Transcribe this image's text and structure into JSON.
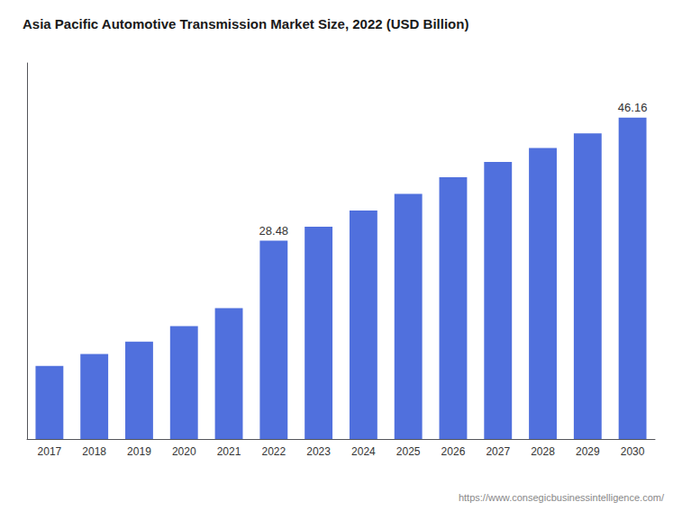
{
  "chart_data": {
    "type": "bar",
    "title": "Asia Pacific Automotive Transmission Market Size, 2022 (USD Billion)",
    "categories": [
      "2017",
      "2018",
      "2019",
      "2020",
      "2021",
      "2022",
      "2023",
      "2024",
      "2025",
      "2026",
      "2027",
      "2028",
      "2029",
      "2030"
    ],
    "values": [
      10.5,
      12.2,
      14.0,
      16.2,
      18.8,
      28.48,
      30.5,
      32.8,
      35.2,
      37.6,
      39.8,
      41.8,
      43.9,
      46.16
    ],
    "annotations": [
      {
        "text": "28.48",
        "x": "2022",
        "y": 28.48
      },
      {
        "text": "46.16",
        "x": "2030",
        "y": 46.16
      }
    ],
    "source": "https://www.consegicbusinessintelligence.com/",
    "ylim": [
      0,
      54
    ],
    "grid": false,
    "tick_labels": "x"
  }
}
